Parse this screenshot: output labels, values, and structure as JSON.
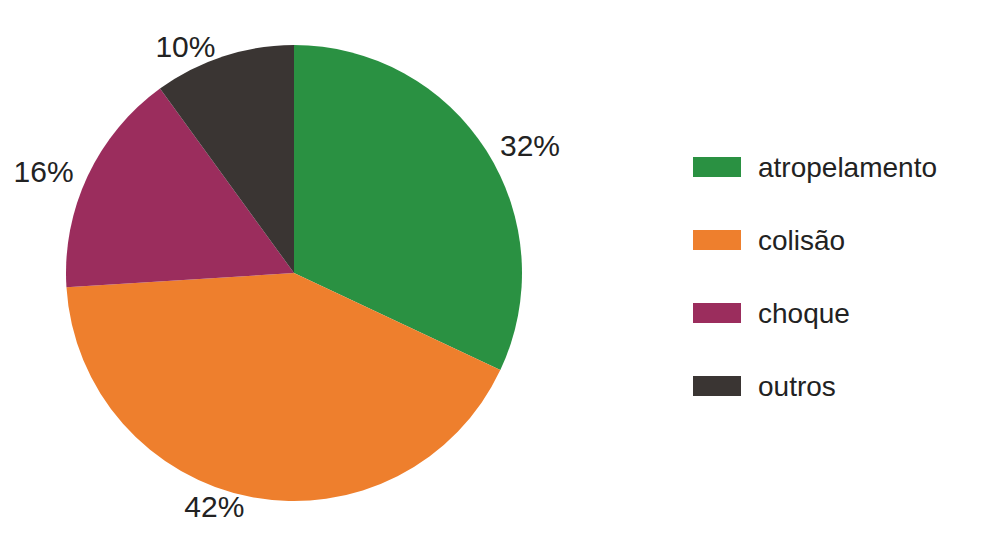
{
  "chart_data": {
    "type": "pie",
    "categories": [
      "atropelamento",
      "colisão",
      "choque",
      "outros"
    ],
    "values": [
      32,
      42,
      16,
      10
    ],
    "value_labels": [
      "32%",
      "42%",
      "16%",
      "10%"
    ],
    "colors": [
      "#2a9142",
      "#ee7f2d",
      "#9b2d5d",
      "#3a3533"
    ],
    "legend": "right",
    "data_labels": true
  }
}
